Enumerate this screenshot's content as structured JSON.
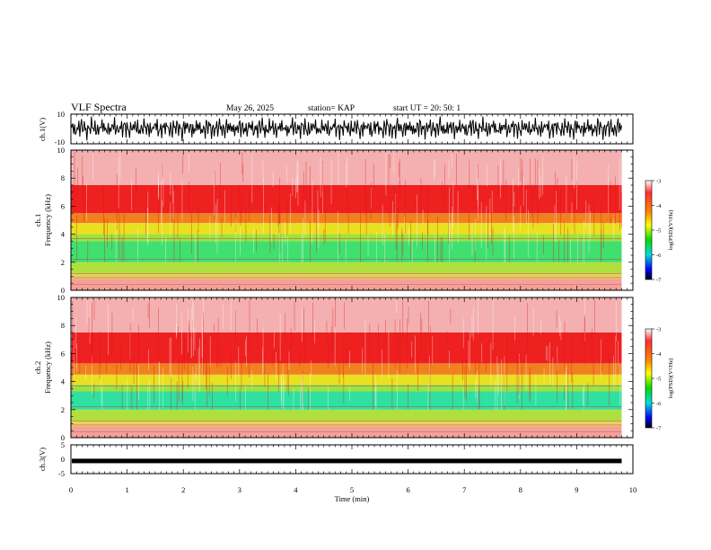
{
  "header": {
    "title": "VLF Spectra",
    "date": "May 26, 2025",
    "station": "station= KAP",
    "start": "start  UT  =   20: 50: 1"
  },
  "chart_data": [
    {
      "type": "line",
      "panel": "waveform-ch1",
      "ylabel": "ch.1(V)",
      "ylim": [
        -10,
        10
      ],
      "yticks": [
        "10",
        "-10"
      ],
      "xlim": [
        0,
        10
      ],
      "x_extent": 9.8,
      "values": [
        2,
        -3,
        4,
        -1,
        3,
        -5,
        1,
        4,
        -2,
        5,
        -4,
        2,
        3,
        -3,
        1,
        5,
        -2,
        4,
        -5,
        2,
        0,
        3,
        -4,
        5,
        -1,
        2,
        -3,
        4,
        -2,
        1,
        3,
        -5,
        4,
        2,
        -3,
        5,
        -1,
        3,
        -4,
        2
      ]
    },
    {
      "type": "heatmap",
      "panel": "spectrogram-ch1",
      "ylabel": "ch.1\nFrequency (kHz)",
      "ylim": [
        0,
        10
      ],
      "yticks": [
        "0",
        "2",
        "4",
        "6",
        "8",
        "10"
      ],
      "xlim": [
        0,
        10
      ],
      "x_extent": 9.8,
      "bands": [
        {
          "from": 0.0,
          "to": 0.8,
          "color": "#f5a09a"
        },
        {
          "from": 0.8,
          "to": 1.2,
          "color": "#e8d060"
        },
        {
          "from": 1.2,
          "to": 2.0,
          "color": "#b0e040"
        },
        {
          "from": 2.0,
          "to": 3.5,
          "color": "#40e070"
        },
        {
          "from": 3.5,
          "to": 4.0,
          "color": "#a0e040"
        },
        {
          "from": 4.0,
          "to": 4.8,
          "color": "#e8e020"
        },
        {
          "from": 4.8,
          "to": 5.5,
          "color": "#f08020"
        },
        {
          "from": 5.5,
          "to": 7.5,
          "color": "#ee2020"
        },
        {
          "from": 7.5,
          "to": 10.0,
          "color": "#f4b0b0"
        }
      ],
      "colorbar": {
        "label": "log(PSD)(V²/Hz)",
        "range": [
          -7,
          -3
        ],
        "ticks": [
          "-3",
          "-4",
          "-5",
          "-6",
          "-7"
        ]
      }
    },
    {
      "type": "heatmap",
      "panel": "spectrogram-ch2",
      "ylabel": "ch.2\nFrequency (kHz)",
      "ylim": [
        0,
        10
      ],
      "yticks": [
        "0",
        "2",
        "4",
        "6",
        "8",
        "10"
      ],
      "xlim": [
        0,
        10
      ],
      "x_extent": 9.8,
      "bands": [
        {
          "from": 0.0,
          "to": 0.8,
          "color": "#f5a09a"
        },
        {
          "from": 0.8,
          "to": 1.2,
          "color": "#e8d060"
        },
        {
          "from": 1.2,
          "to": 2.0,
          "color": "#b0e040"
        },
        {
          "from": 2.0,
          "to": 3.3,
          "color": "#30e0a0"
        },
        {
          "from": 3.3,
          "to": 3.8,
          "color": "#a0e040"
        },
        {
          "from": 3.8,
          "to": 4.5,
          "color": "#e8e020"
        },
        {
          "from": 4.5,
          "to": 5.3,
          "color": "#f08020"
        },
        {
          "from": 5.3,
          "to": 7.5,
          "color": "#ee2020"
        },
        {
          "from": 7.5,
          "to": 10.0,
          "color": "#f4b0b0"
        }
      ],
      "colorbar": {
        "label": "log(PSD)(V²/Hz)",
        "range": [
          -7,
          -3
        ],
        "ticks": [
          "-3",
          "-4",
          "-5",
          "-6",
          "-7"
        ]
      }
    },
    {
      "type": "line",
      "panel": "waveform-ch3",
      "ylabel": "ch.3(V)",
      "ylim": [
        -5,
        5
      ],
      "yticks": [
        "5",
        "0",
        "-5"
      ],
      "xlim": [
        0,
        10
      ],
      "x_extent": 9.8,
      "values": [
        -0.6,
        -0.6
      ],
      "xlabel": "Time  (min)",
      "xticks": [
        "0",
        "1",
        "2",
        "3",
        "4",
        "5",
        "6",
        "7",
        "8",
        "9",
        "10"
      ]
    }
  ]
}
